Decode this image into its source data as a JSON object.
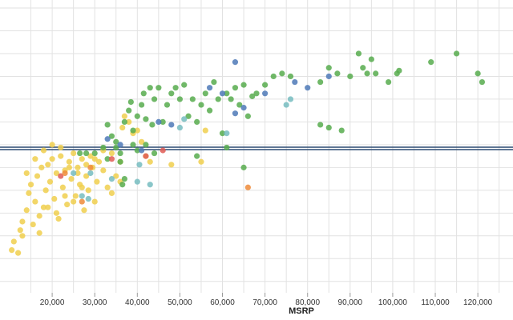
{
  "chart_data": {
    "type": "scatter",
    "xlabel": "MSRP",
    "ylabel": "",
    "xlim": [
      10000,
      126000
    ],
    "ylim": [
      0,
      100
    ],
    "x_ticks": [
      20000,
      30000,
      40000,
      50000,
      60000,
      70000,
      80000,
      90000,
      100000,
      110000,
      120000
    ],
    "x_tick_labels": [
      "20,000",
      "30,000",
      "40,000",
      "50,000",
      "60,000",
      "70,000",
      "80,000",
      "90,000",
      "100,000",
      "110,000",
      "120,000"
    ],
    "y_grid": [
      4,
      12,
      20,
      28,
      36,
      44,
      52,
      60,
      68,
      76,
      84,
      92,
      100
    ],
    "grid": true,
    "reference_line": {
      "y": 50.7,
      "color": "#2c4a72"
    },
    "colors": {
      "yellow": "#f0cf4d",
      "green": "#57ab4e",
      "blue": "#4e79b7",
      "teal": "#76bcc0",
      "red": "#e05c55",
      "orange": "#ef8b3a"
    },
    "series": [
      {
        "key": "yellow",
        "points": [
          [
            10500,
            15
          ],
          [
            11000,
            18
          ],
          [
            12000,
            14
          ],
          [
            12500,
            22
          ],
          [
            13000,
            25
          ],
          [
            14000,
            29
          ],
          [
            14500,
            35
          ],
          [
            15000,
            38
          ],
          [
            16000,
            32
          ],
          [
            16500,
            41
          ],
          [
            17000,
            27
          ],
          [
            17500,
            44
          ],
          [
            18000,
            30
          ],
          [
            18500,
            36
          ],
          [
            19000,
            45
          ],
          [
            19500,
            39
          ],
          [
            20000,
            47
          ],
          [
            20500,
            33
          ],
          [
            21000,
            42
          ],
          [
            21500,
            26
          ],
          [
            22000,
            48
          ],
          [
            22500,
            37
          ],
          [
            23000,
            43
          ],
          [
            23500,
            31
          ],
          [
            24000,
            46
          ],
          [
            24500,
            40
          ],
          [
            25000,
            49
          ],
          [
            25500,
            34
          ],
          [
            26000,
            44
          ],
          [
            26500,
            38
          ],
          [
            27000,
            47
          ],
          [
            27500,
            29
          ],
          [
            28000,
            41
          ],
          [
            28500,
            36
          ],
          [
            29000,
            48
          ],
          [
            29500,
            44
          ],
          [
            30000,
            32
          ],
          [
            30500,
            39
          ],
          [
            31000,
            46
          ],
          [
            32000,
            43
          ],
          [
            33000,
            37
          ],
          [
            34000,
            35
          ],
          [
            35000,
            41
          ],
          [
            36000,
            39
          ],
          [
            36500,
            58
          ],
          [
            37000,
            62
          ],
          [
            38000,
            60
          ],
          [
            39000,
            56
          ],
          [
            40000,
            57
          ],
          [
            41000,
            53
          ],
          [
            42000,
            48
          ],
          [
            43000,
            46
          ],
          [
            48000,
            45
          ],
          [
            55000,
            46
          ],
          [
            56000,
            57
          ],
          [
            13000,
            20
          ],
          [
            15500,
            24
          ],
          [
            17000,
            21
          ],
          [
            19000,
            30
          ],
          [
            21000,
            28
          ],
          [
            23000,
            34
          ],
          [
            25000,
            32
          ],
          [
            27000,
            37
          ],
          [
            14000,
            42
          ],
          [
            16000,
            47
          ],
          [
            18000,
            50
          ],
          [
            20000,
            52
          ],
          [
            22000,
            51
          ],
          [
            24000,
            44
          ],
          [
            26000,
            42
          ],
          [
            28000,
            45
          ],
          [
            30000,
            47
          ],
          [
            32000,
            50
          ],
          [
            34000,
            49
          ],
          [
            36000,
            46
          ]
        ]
      },
      {
        "key": "green",
        "points": [
          [
            26500,
            49
          ],
          [
            28000,
            49
          ],
          [
            30000,
            49
          ],
          [
            32000,
            51
          ],
          [
            33000,
            59
          ],
          [
            34000,
            55
          ],
          [
            35000,
            53
          ],
          [
            36000,
            49
          ],
          [
            37000,
            60
          ],
          [
            38000,
            64
          ],
          [
            38500,
            67
          ],
          [
            39000,
            57
          ],
          [
            40000,
            62
          ],
          [
            41000,
            66
          ],
          [
            41500,
            70
          ],
          [
            42000,
            61
          ],
          [
            43000,
            72
          ],
          [
            43500,
            59
          ],
          [
            44000,
            68
          ],
          [
            45000,
            72
          ],
          [
            46000,
            60
          ],
          [
            47000,
            66
          ],
          [
            48000,
            70
          ],
          [
            49000,
            72
          ],
          [
            50000,
            68
          ],
          [
            51000,
            73
          ],
          [
            52000,
            62
          ],
          [
            53000,
            68
          ],
          [
            54000,
            60
          ],
          [
            55000,
            66
          ],
          [
            56000,
            70
          ],
          [
            57000,
            64
          ],
          [
            58000,
            74
          ],
          [
            59000,
            68
          ],
          [
            60000,
            56
          ],
          [
            61000,
            70
          ],
          [
            62000,
            68
          ],
          [
            63000,
            72
          ],
          [
            64000,
            66
          ],
          [
            65000,
            73
          ],
          [
            66000,
            62
          ],
          [
            67000,
            69
          ],
          [
            68000,
            70
          ],
          [
            70000,
            73
          ],
          [
            72000,
            76
          ],
          [
            74000,
            77
          ],
          [
            76000,
            76
          ],
          [
            83000,
            74
          ],
          [
            85000,
            79
          ],
          [
            87000,
            77
          ],
          [
            90000,
            76
          ],
          [
            92000,
            84
          ],
          [
            93000,
            79
          ],
          [
            94000,
            77
          ],
          [
            95000,
            82
          ],
          [
            96000,
            77
          ],
          [
            99000,
            74
          ],
          [
            101000,
            77
          ],
          [
            101500,
            78
          ],
          [
            109000,
            81
          ],
          [
            115000,
            84
          ],
          [
            120000,
            77
          ],
          [
            121000,
            74
          ],
          [
            83000,
            59
          ],
          [
            85000,
            58
          ],
          [
            88000,
            57
          ],
          [
            65000,
            44
          ],
          [
            54000,
            48
          ],
          [
            61000,
            51
          ],
          [
            40000,
            50
          ],
          [
            42000,
            52
          ],
          [
            44000,
            49
          ],
          [
            36000,
            46
          ],
          [
            37000,
            40
          ],
          [
            36500,
            38
          ],
          [
            33000,
            47
          ],
          [
            35000,
            51
          ],
          [
            39000,
            52
          ]
        ]
      },
      {
        "key": "blue",
        "points": [
          [
            33000,
            54
          ],
          [
            36000,
            52
          ],
          [
            41000,
            50
          ],
          [
            45000,
            60
          ],
          [
            48000,
            59
          ],
          [
            57000,
            72
          ],
          [
            60000,
            70
          ],
          [
            63000,
            63
          ],
          [
            65000,
            65
          ],
          [
            70000,
            70
          ],
          [
            77000,
            74
          ],
          [
            80000,
            72
          ],
          [
            85000,
            76
          ],
          [
            63000,
            81
          ]
        ]
      },
      {
        "key": "teal",
        "points": [
          [
            25000,
            42
          ],
          [
            29000,
            42
          ],
          [
            34000,
            40
          ],
          [
            40000,
            39
          ],
          [
            43000,
            38
          ],
          [
            50000,
            58
          ],
          [
            51000,
            61
          ],
          [
            61000,
            56
          ],
          [
            75000,
            66
          ],
          [
            76000,
            68
          ],
          [
            27000,
            34
          ],
          [
            28500,
            33
          ],
          [
            40500,
            45
          ]
        ]
      },
      {
        "key": "red",
        "points": [
          [
            34000,
            47
          ],
          [
            42000,
            48
          ],
          [
            46000,
            50
          ],
          [
            22000,
            41
          ]
        ]
      },
      {
        "key": "orange",
        "points": [
          [
            23000,
            42
          ],
          [
            29000,
            44
          ],
          [
            27000,
            32
          ],
          [
            66000,
            37
          ]
        ]
      }
    ]
  }
}
